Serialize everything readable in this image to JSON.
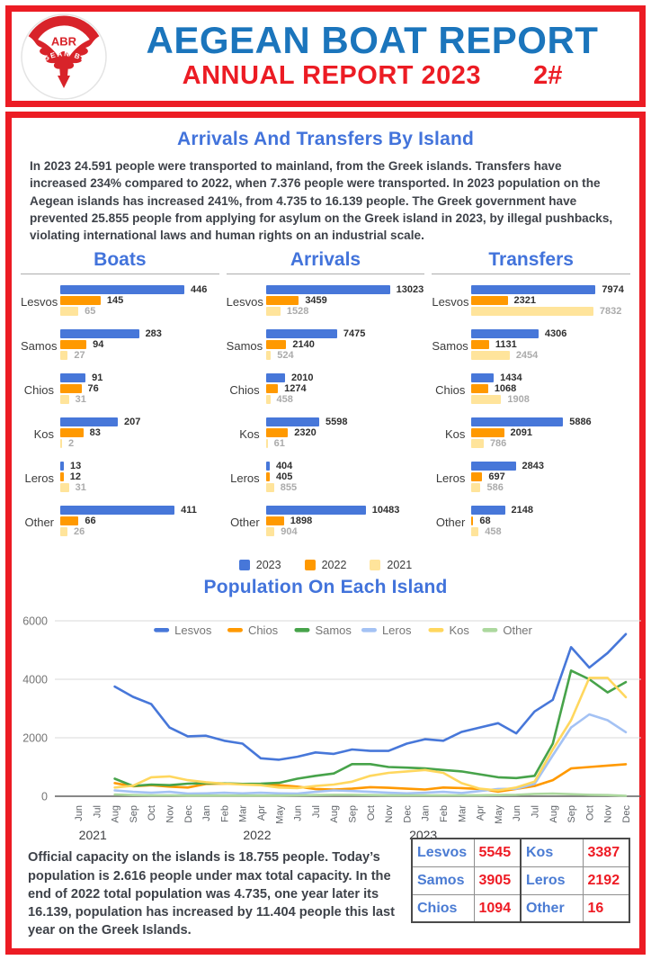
{
  "header": {
    "title": "AEGEAN BOAT REPORT",
    "subtitle": "ANNUAL REPORT 2023",
    "page_number": "2#",
    "logo": {
      "abbr": "ABR",
      "arc_text": "AEGEAN BOAT REPORT"
    }
  },
  "arrivals_section": {
    "title": "Arrivals And Transfers By Island",
    "intro": "In 2023 24.591  people were transported to mainland, from the Greek islands. Transfers have increased 234% compared to 2022, when  7.376 people were transported. In 2023 population on the Aegean islands has increased 241%, from 4.735 to 16.139 people. The Greek government have prevented 25.855 people from applying for asylum on the Greek island in 2023, by illegal pushbacks, violating international laws and human rights on an industrial scale."
  },
  "population_section": {
    "title": "Population On Each Island"
  },
  "bar_legend": [
    {
      "label": "2023",
      "color": "#4777D9"
    },
    {
      "label": "2022",
      "color": "#FF9900"
    },
    {
      "label": "2021",
      "color": "#FFE49B"
    }
  ],
  "chart_data": [
    {
      "type": "bar",
      "title": "Boats",
      "orientation": "horizontal",
      "categories": [
        "Lesvos",
        "Samos",
        "Chios",
        "Kos",
        "Leros",
        "Other"
      ],
      "series": [
        {
          "name": "2023",
          "color": "#4777D9",
          "values": [
            446,
            283,
            91,
            207,
            13,
            411
          ]
        },
        {
          "name": "2022",
          "color": "#FF9900",
          "values": [
            145,
            94,
            76,
            83,
            12,
            66
          ]
        },
        {
          "name": "2021",
          "color": "#FFE49B",
          "values": [
            65,
            27,
            31,
            2,
            31,
            26
          ]
        }
      ]
    },
    {
      "type": "bar",
      "title": "Arrivals",
      "orientation": "horizontal",
      "categories": [
        "Lesvos",
        "Samos",
        "Chios",
        "Kos",
        "Leros",
        "Other"
      ],
      "series": [
        {
          "name": "2023",
          "color": "#4777D9",
          "values": [
            13023,
            7475,
            2010,
            5598,
            404,
            10483
          ]
        },
        {
          "name": "2022",
          "color": "#FF9900",
          "values": [
            3459,
            2140,
            1274,
            2320,
            405,
            1898
          ]
        },
        {
          "name": "2021",
          "color": "#FFE49B",
          "values": [
            1528,
            524,
            458,
            61,
            855,
            904
          ]
        }
      ]
    },
    {
      "type": "bar",
      "title": "Transfers",
      "orientation": "horizontal",
      "categories": [
        "Lesvos",
        "Samos",
        "Chios",
        "Kos",
        "Leros",
        "Other"
      ],
      "series": [
        {
          "name": "2023",
          "color": "#4777D9",
          "values": [
            7974,
            4306,
            1434,
            5886,
            2843,
            2148
          ]
        },
        {
          "name": "2022",
          "color": "#FF9900",
          "values": [
            2321,
            1131,
            1068,
            2091,
            697,
            68
          ]
        },
        {
          "name": "2021",
          "color": "#FFE49B",
          "values": [
            7832,
            2454,
            1908,
            786,
            586,
            458
          ]
        }
      ]
    },
    {
      "type": "line",
      "title": "Population On Each Island",
      "x": [
        "Jun",
        "Jul",
        "Aug",
        "Sep",
        "Oct",
        "Nov",
        "Dec",
        "Jan",
        "Feb",
        "Mar",
        "Apr",
        "May",
        "Jun",
        "Jul",
        "Aug",
        "Sep",
        "Oct",
        "Nov",
        "Dec",
        "Jan",
        "Feb",
        "Mar",
        "Apr",
        "May",
        "Jun",
        "Jul",
        "Aug",
        "Sep",
        "Oct",
        "Nov",
        "Dec"
      ],
      "x_years": [
        {
          "label": "2021",
          "at": 0.8
        },
        {
          "label": "2022",
          "at": 9.8
        },
        {
          "label": "2023",
          "at": 18.9
        }
      ],
      "ylim": [
        0,
        6000
      ],
      "yticks": [
        0,
        2000,
        4000,
        6000
      ],
      "grid": true,
      "legend_position": "top",
      "series": [
        {
          "name": "Lesvos",
          "color": "#4777D9",
          "values": [
            null,
            null,
            3750,
            3400,
            3150,
            2350,
            2050,
            2070,
            1900,
            1800,
            1300,
            1250,
            1350,
            1500,
            1450,
            1600,
            1550,
            1550,
            1800,
            1950,
            1900,
            2200,
            2350,
            2500,
            2150,
            2900,
            3300,
            5100,
            4400,
            4900,
            5545
          ]
        },
        {
          "name": "Chios",
          "color": "#FF9900",
          "values": [
            null,
            null,
            450,
            340,
            380,
            330,
            300,
            420,
            430,
            420,
            400,
            380,
            330,
            250,
            230,
            260,
            310,
            290,
            260,
            230,
            300,
            280,
            250,
            160,
            250,
            350,
            550,
            950,
            1000,
            1050,
            1094
          ]
        },
        {
          "name": "Samos",
          "color": "#47A34A",
          "values": [
            null,
            null,
            600,
            350,
            400,
            380,
            430,
            450,
            440,
            420,
            430,
            460,
            600,
            700,
            780,
            1100,
            1100,
            1000,
            980,
            950,
            900,
            850,
            750,
            650,
            620,
            700,
            1800,
            4300,
            4000,
            3550,
            3905
          ]
        },
        {
          "name": "Leros",
          "color": "#A4C2F4",
          "values": [
            null,
            null,
            200,
            150,
            120,
            150,
            90,
            100,
            120,
            100,
            120,
            100,
            90,
            150,
            200,
            180,
            150,
            120,
            100,
            120,
            150,
            110,
            180,
            250,
            260,
            420,
            1400,
            2350,
            2800,
            2600,
            2192
          ]
        },
        {
          "name": "Kos",
          "color": "#FFD75E",
          "values": [
            null,
            null,
            300,
            360,
            650,
            680,
            550,
            480,
            430,
            400,
            380,
            300,
            280,
            350,
            400,
            500,
            700,
            800,
            850,
            900,
            800,
            450,
            260,
            200,
            300,
            500,
            1600,
            2600,
            4050,
            4050,
            3387
          ]
        },
        {
          "name": "Other",
          "color": "#ACD89E",
          "values": [
            null,
            null,
            60,
            40,
            30,
            30,
            25,
            25,
            25,
            25,
            25,
            25,
            30,
            40,
            50,
            50,
            40,
            35,
            30,
            30,
            30,
            30,
            35,
            40,
            50,
            80,
            90,
            70,
            50,
            40,
            16
          ]
        }
      ]
    }
  ],
  "footer": {
    "text": "Official capacity on the islands is 18.755 people. Today’s population is 2.616 people under max total capacity. In the end of 2022 total population was 4.735, one year later its 16.139, population has increased by 11.404 people this last year on the Greek Islands.",
    "table": {
      "rows": [
        [
          {
            "island": "Lesvos",
            "value": "5545"
          },
          {
            "island": "Kos",
            "value": "3387"
          }
        ],
        [
          {
            "island": "Samos",
            "value": "3905"
          },
          {
            "island": "Leros",
            "value": "2192"
          }
        ],
        [
          {
            "island": "Chios",
            "value": "1094"
          },
          {
            "island": "Other",
            "value": "16"
          }
        ]
      ]
    }
  }
}
